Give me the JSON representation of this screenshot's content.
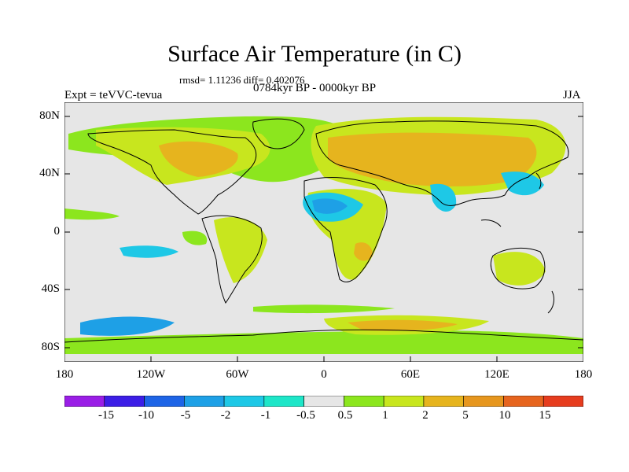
{
  "title": "Surface Air Temperature (in C)",
  "stats": "rmsd= 1.11236 diff= 0.402076",
  "period": "0784kyr BP - 0000kyr BP",
  "expt_label": "Expt = teVVC-tevua",
  "season": "JJA",
  "lat_ticks": [
    "80N",
    "40N",
    "0",
    "40S",
    "80S"
  ],
  "lon_ticks": [
    "180",
    "120W",
    "60W",
    "0",
    "60E",
    "120E",
    "180"
  ],
  "colorbar": {
    "labels": [
      "-15",
      "-10",
      "-5",
      "-2",
      "-1",
      "-0.5",
      "0.5",
      "1",
      "2",
      "5",
      "10",
      "15"
    ],
    "colors": [
      "#9a1ee6",
      "#3c1ee6",
      "#1e64e6",
      "#1ea0e6",
      "#1ec8e6",
      "#1ee6c8",
      "#e6e6e6",
      "#8ce61e",
      "#c8e61e",
      "#e6b41e",
      "#e6961e",
      "#e6641e",
      "#e63c1e"
    ]
  },
  "colors": {
    "ocean_background": "#e6e6e6",
    "coastline": "#000000"
  }
}
